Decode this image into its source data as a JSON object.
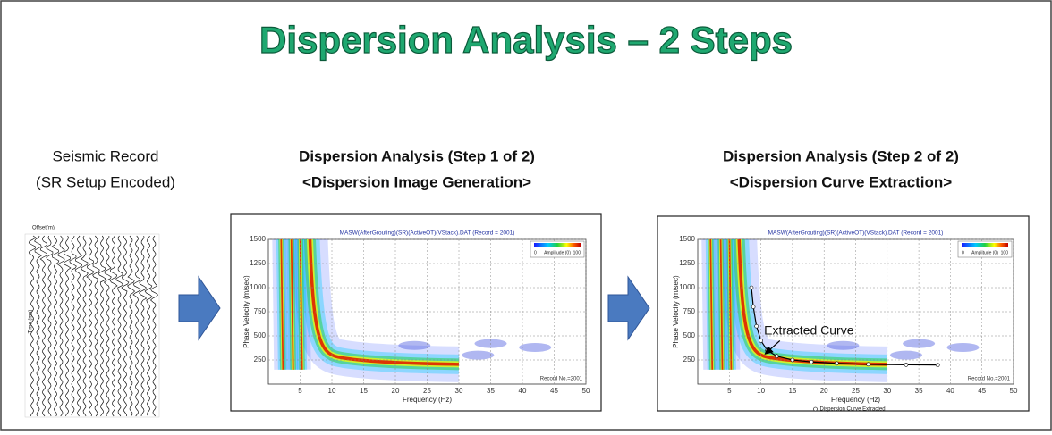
{
  "header": {
    "title": "Dispersion Analysis – 2 Steps"
  },
  "record": {
    "caption": [
      "Seismic Record",
      "(SR Setup Encoded)"
    ],
    "offset_label": "Offset(m)",
    "time_label": "Time (ms)"
  },
  "steps": [
    {
      "caption": [
        "Dispersion Analysis (Step 1 of 2)",
        "<Dispersion Image Generation>"
      ],
      "plot": {
        "title": "MASW(AfterGrouting)(SR)(ActiveOT)(VStack).DAT (Record = 2001)",
        "y_label": "Phase Velocity (m/sec)",
        "x_label": "Frequency (Hz)",
        "yticks": [
          250,
          500,
          750,
          1000,
          1250,
          1500
        ],
        "xticks": [
          5,
          10,
          15,
          20,
          25,
          30,
          35,
          40,
          45,
          50
        ],
        "legend": {
          "min": 0,
          "label": "Amplitude (0)",
          "max": 100
        },
        "record_no": "Record No.=2001"
      }
    },
    {
      "caption": [
        "Dispersion Analysis (Step 2 of 2)",
        "<Dispersion Curve Extraction>"
      ],
      "plot": {
        "title": "MASW(AfterGrouting)(SR)(ActiveOT)(VStack).DAT (Record = 2001)",
        "y_label": "Phase Velocity (m/sec)",
        "x_label": "Frequency (Hz)",
        "yticks": [
          250,
          500,
          750,
          1000,
          1250,
          1500
        ],
        "xticks": [
          5,
          10,
          15,
          20,
          25,
          30,
          35,
          40,
          45,
          50
        ],
        "legend": {
          "min": 0,
          "label": "Amplitude (0)",
          "max": 100
        },
        "record_no": "Record No.=2001",
        "curve_legend": "Dispersion Curve Extracted",
        "annotation": "Extracted Curve"
      }
    }
  ]
}
